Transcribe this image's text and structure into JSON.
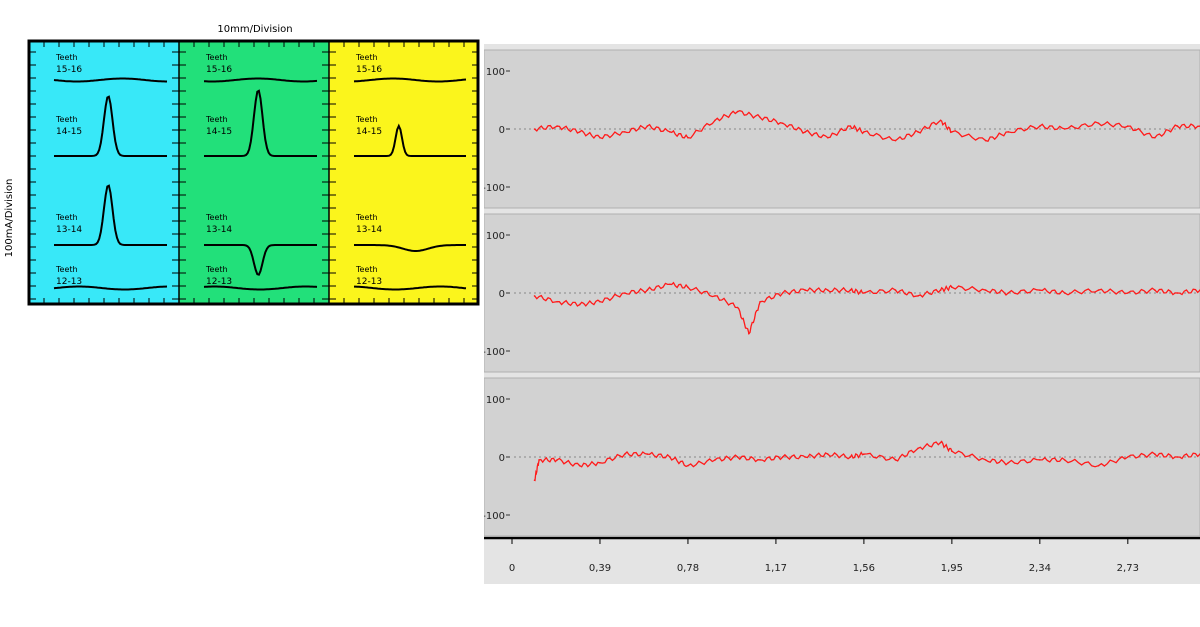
{
  "left_panel": {
    "top_label": "10mm/Division",
    "side_label": "100mA/Division",
    "colors": {
      "col1": "#38e8f8",
      "col2": "#22e07a",
      "col3": "#fbf51c",
      "frame": "#000000",
      "trace": "#000000"
    }
  },
  "right_panel": {
    "colors": {
      "background": "#d2d2d2",
      "trace": "#ff1a1a",
      "zero_line": "#888888"
    }
  },
  "chart_data": [
    {
      "type": "line",
      "description": "Current signal per tooth-pair gap, three columns",
      "xlabel": "10mm/Division",
      "ylabel": "100mA/Division",
      "columns": [
        {
          "color": "#38e8f8",
          "traces": [
            {
              "name": "Teeth 15-16",
              "shape": "flat"
            },
            {
              "name": "Teeth 14-15",
              "shape": "peak",
              "relative_amplitude": 1.0
            },
            {
              "name": "Teeth 13-14",
              "shape": "peak",
              "relative_amplitude": 1.0
            },
            {
              "name": "Teeth 12-13",
              "shape": "flat"
            }
          ]
        },
        {
          "color": "#22e07a",
          "traces": [
            {
              "name": "Teeth 15-16",
              "shape": "flat"
            },
            {
              "name": "Teeth 14-15",
              "shape": "peak",
              "relative_amplitude": 1.1
            },
            {
              "name": "Teeth 13-14",
              "shape": "dip",
              "relative_amplitude": -0.5
            },
            {
              "name": "Teeth 12-13",
              "shape": "flat"
            }
          ]
        },
        {
          "color": "#fbf51c",
          "traces": [
            {
              "name": "Teeth 15-16",
              "shape": "flat"
            },
            {
              "name": "Teeth 14-15",
              "shape": "peak",
              "relative_amplitude": 0.5
            },
            {
              "name": "Teeth 13-14",
              "shape": "slight dip",
              "relative_amplitude": -0.1
            },
            {
              "name": "Teeth 12-13",
              "shape": "flat"
            }
          ]
        }
      ]
    },
    {
      "type": "line",
      "grid": false,
      "x_ticks": [
        "0",
        "0,39",
        "0,78",
        "1,17",
        "1,56",
        "1,95",
        "2,34",
        "2,73"
      ],
      "xlim": [
        0,
        3.05
      ],
      "panels": [
        {
          "y_ticks": [
            "100",
            "0",
            "-100"
          ],
          "ylim": [
            -100,
            100
          ],
          "x": [
            0.1,
            0.2,
            0.3,
            0.39,
            0.5,
            0.6,
            0.7,
            0.78,
            0.9,
            1.0,
            1.1,
            1.2,
            1.3,
            1.4,
            1.5,
            1.56,
            1.7,
            1.8,
            1.9,
            1.95,
            2.1,
            2.2,
            2.34,
            2.45,
            2.6,
            2.73,
            2.85,
            2.95,
            3.05
          ],
          "y": [
            0,
            5,
            -5,
            -15,
            -5,
            5,
            -5,
            -15,
            15,
            30,
            20,
            10,
            -5,
            -15,
            5,
            -5,
            -20,
            -5,
            15,
            -5,
            -20,
            -5,
            5,
            0,
            10,
            5,
            -15,
            5,
            5
          ]
        },
        {
          "y_ticks": [
            "100",
            "0",
            "-100"
          ],
          "ylim": [
            -100,
            100
          ],
          "x": [
            0.1,
            0.2,
            0.3,
            0.39,
            0.5,
            0.6,
            0.7,
            0.78,
            0.9,
            1.0,
            1.05,
            1.1,
            1.2,
            1.3,
            1.4,
            1.5,
            1.56,
            1.7,
            1.8,
            1.9,
            1.95,
            2.1,
            2.2,
            2.34,
            2.45,
            2.6,
            2.73,
            2.85,
            2.95,
            3.05
          ],
          "y": [
            -5,
            -15,
            -20,
            -15,
            0,
            5,
            15,
            10,
            -5,
            -25,
            -70,
            -15,
            0,
            5,
            5,
            5,
            0,
            5,
            -5,
            5,
            10,
            5,
            0,
            5,
            0,
            5,
            0,
            5,
            0,
            5
          ]
        },
        {
          "y_ticks": [
            "100",
            "0",
            "-100"
          ],
          "ylim": [
            -100,
            100
          ],
          "x": [
            0.1,
            0.12,
            0.2,
            0.3,
            0.39,
            0.5,
            0.6,
            0.7,
            0.78,
            0.9,
            1.0,
            1.1,
            1.2,
            1.3,
            1.4,
            1.5,
            1.56,
            1.7,
            1.8,
            1.9,
            1.95,
            2.1,
            2.2,
            2.34,
            2.45,
            2.6,
            2.73,
            2.85,
            2.95,
            3.05
          ],
          "y": [
            -40,
            -5,
            -5,
            -15,
            -10,
            5,
            5,
            0,
            -15,
            -5,
            0,
            -5,
            0,
            0,
            5,
            0,
            5,
            -5,
            15,
            25,
            10,
            -5,
            -10,
            -5,
            -5,
            -15,
            0,
            5,
            0,
            5
          ]
        }
      ]
    }
  ]
}
